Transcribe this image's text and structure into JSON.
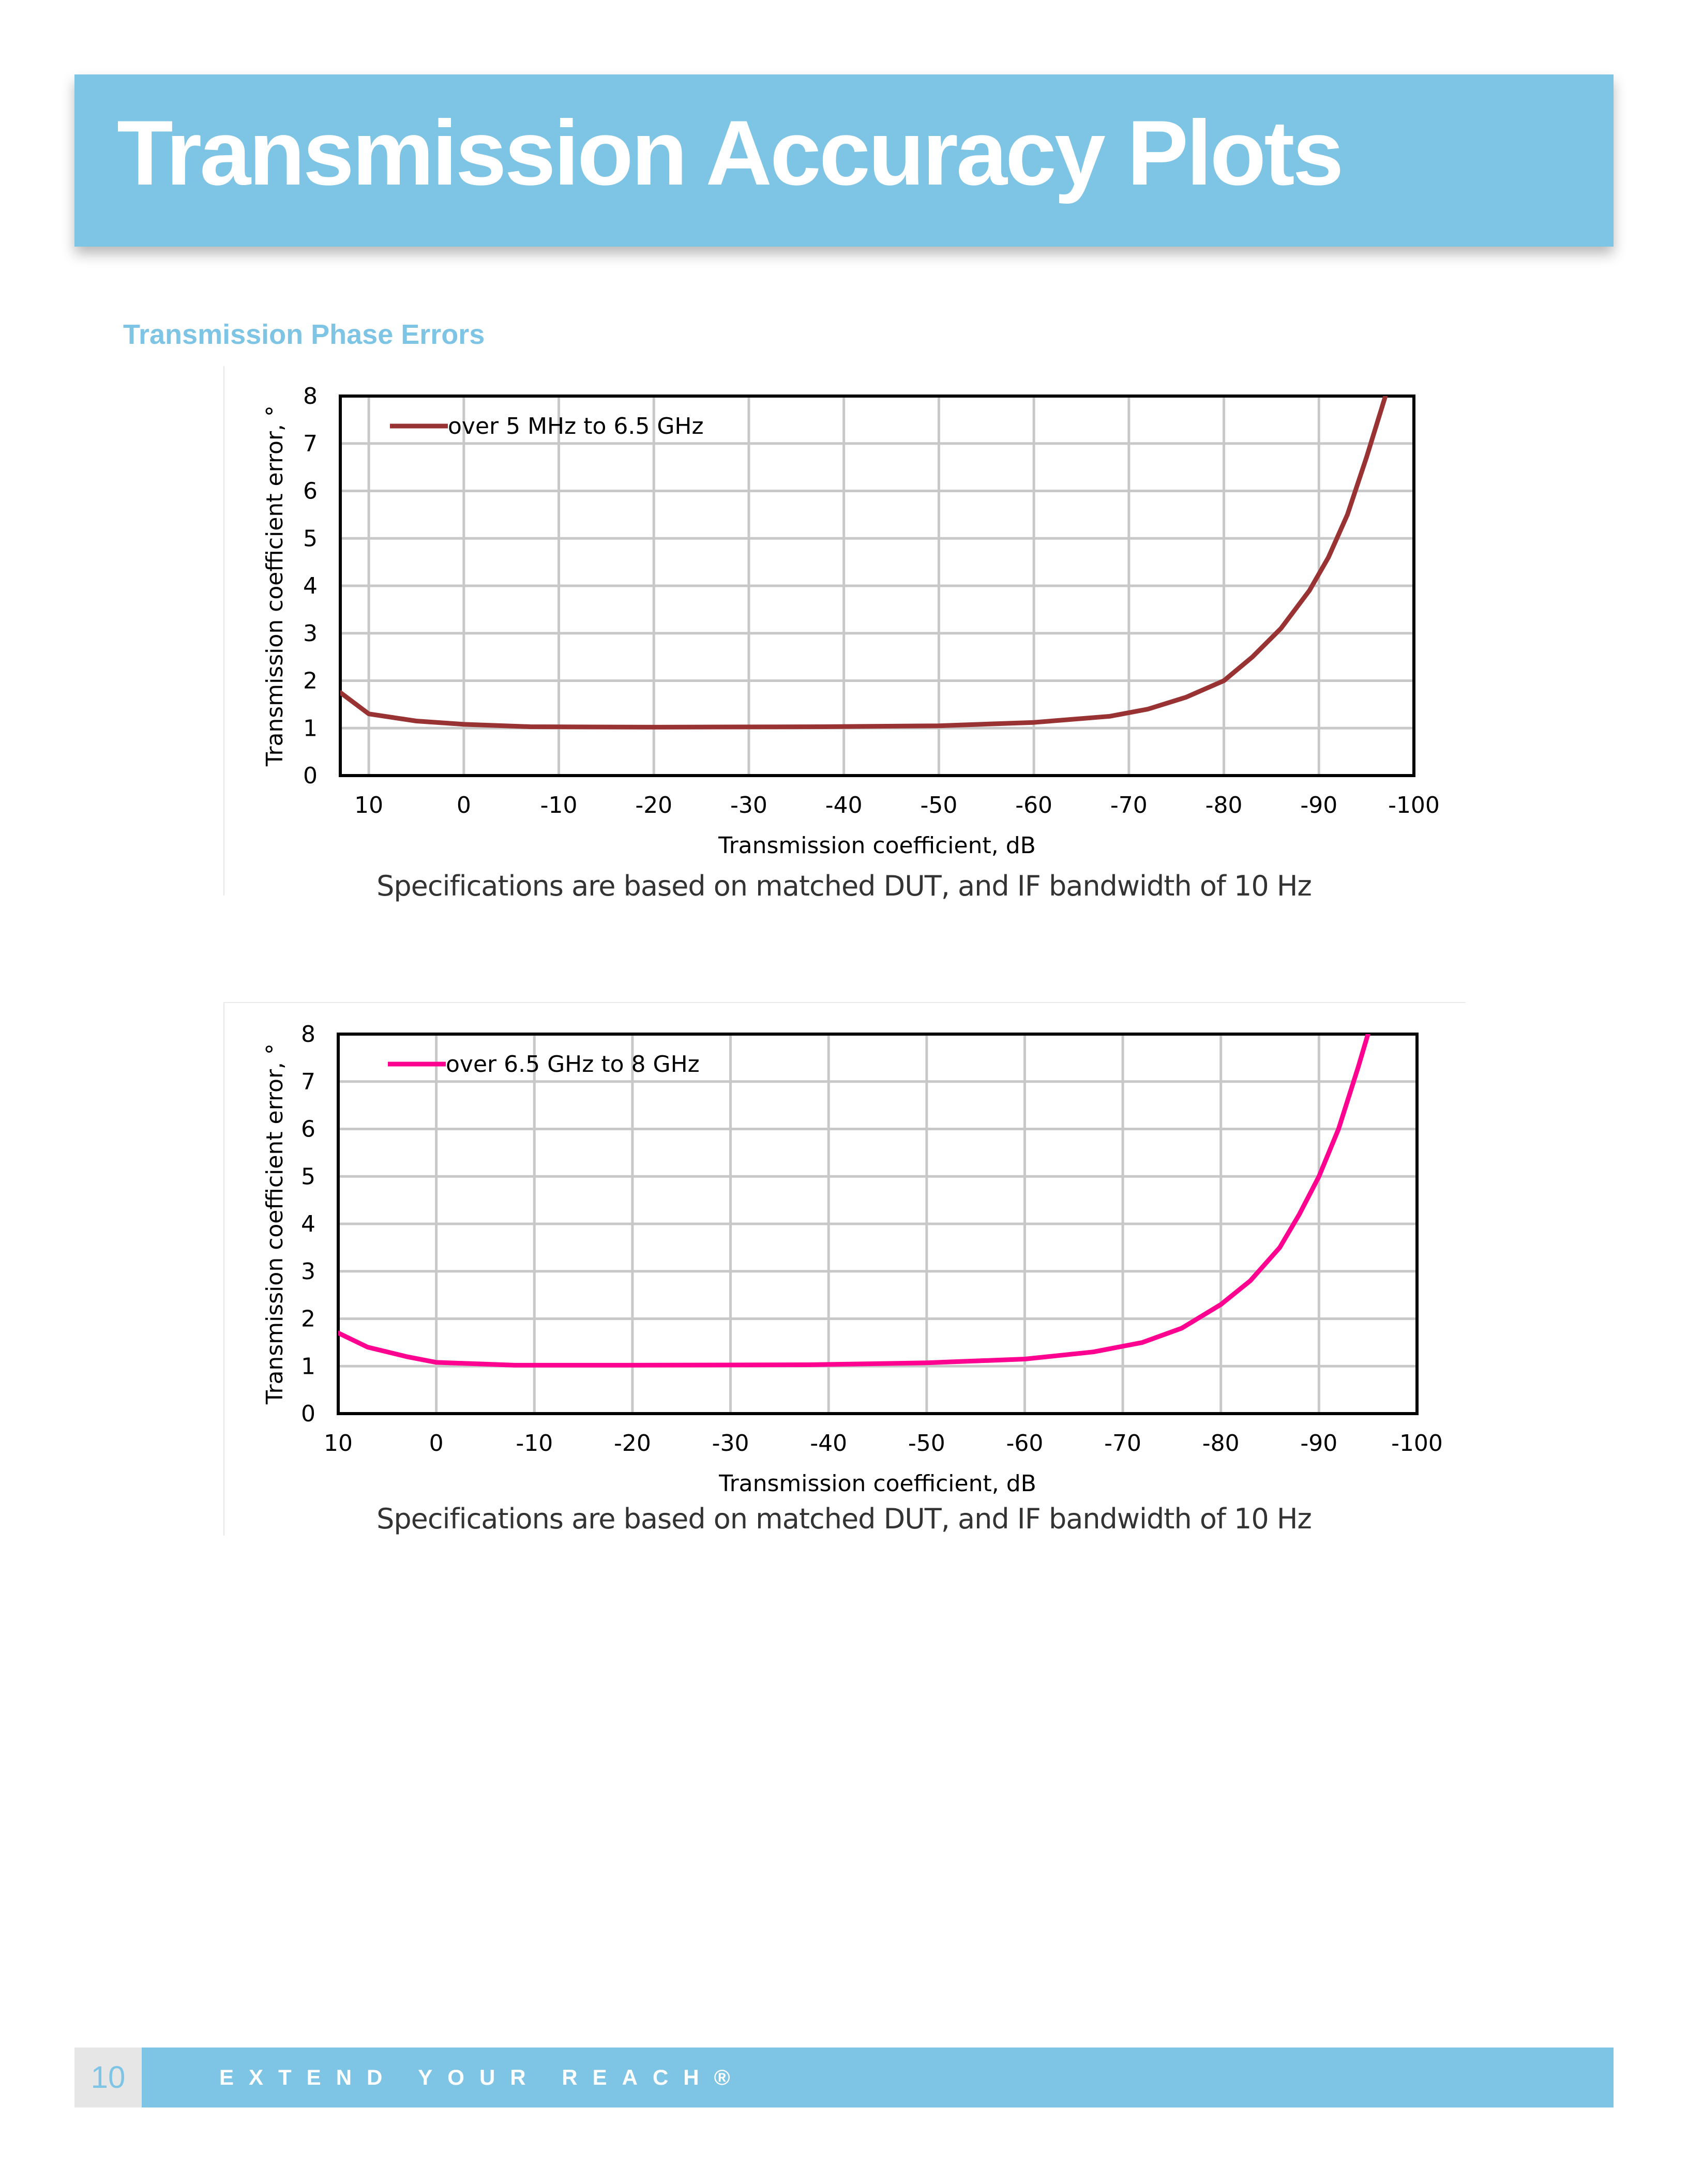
{
  "header": {
    "title": "Transmission Accuracy Plots"
  },
  "section": {
    "title": "Transmission Phase Errors"
  },
  "charts": [
    {
      "caption": "Specifications are based on matched DUT, and IF bandwidth of 10 Hz",
      "chart_data": {
        "type": "line",
        "xlabel": "Transmission coefficient, dB",
        "ylabel": "Transmission coefficient error, °",
        "xlim": [
          13,
          -100
        ],
        "ylim": [
          0,
          8
        ],
        "x_ticks": [
          "10",
          "0",
          "-10",
          "-20",
          "-30",
          "-40",
          "-50",
          "-60",
          "-70",
          "-80",
          "-90",
          "-100"
        ],
        "y_ticks": [
          "0",
          "1",
          "2",
          "3",
          "4",
          "5",
          "6",
          "7",
          "8"
        ],
        "grid": true,
        "legend_position": "top-left",
        "series": [
          {
            "name": "over 5 MHz to 6.5 GHz",
            "color": "#993333",
            "x": [
              13,
              10,
              5,
              0,
              -7,
              -20,
              -38,
              -50,
              -60,
              -68,
              -72,
              -76,
              -80,
              -83,
              -86,
              -89,
              -91,
              -93,
              -95,
              -97
            ],
            "y": [
              1.75,
              1.3,
              1.15,
              1.08,
              1.03,
              1.02,
              1.03,
              1.05,
              1.12,
              1.25,
              1.4,
              1.65,
              2.0,
              2.5,
              3.1,
              3.9,
              4.6,
              5.5,
              6.7,
              8.0
            ]
          }
        ]
      }
    },
    {
      "caption": "Specifications are based on matched DUT, and IF bandwidth of 10 Hz",
      "chart_data": {
        "type": "line",
        "xlabel": "Transmission coefficient, dB",
        "ylabel": "Transmission coefficient error, °",
        "xlim": [
          10,
          -100
        ],
        "ylim": [
          0,
          8
        ],
        "x_ticks": [
          "10",
          "0",
          "-10",
          "-20",
          "-30",
          "-40",
          "-50",
          "-60",
          "-70",
          "-80",
          "-90",
          "-100"
        ],
        "y_ticks": [
          "0",
          "1",
          "2",
          "3",
          "4",
          "5",
          "6",
          "7",
          "8"
        ],
        "grid": true,
        "legend_position": "top-left",
        "series": [
          {
            "name": "over 6.5 GHz to 8 GHz",
            "color": "#ff0090",
            "x": [
              10,
              7,
              3,
              0,
              -8,
              -20,
              -38,
              -50,
              -60,
              -67,
              -72,
              -76,
              -80,
              -83,
              -86,
              -88,
              -90,
              -92,
              -94,
              -95
            ],
            "y": [
              1.7,
              1.4,
              1.2,
              1.08,
              1.02,
              1.02,
              1.03,
              1.07,
              1.15,
              1.3,
              1.5,
              1.8,
              2.3,
              2.8,
              3.5,
              4.2,
              5.0,
              6.0,
              7.3,
              8.0
            ]
          }
        ]
      }
    }
  ],
  "footer": {
    "page_number": "10",
    "tagline": "EXTEND YOUR REACH®"
  }
}
